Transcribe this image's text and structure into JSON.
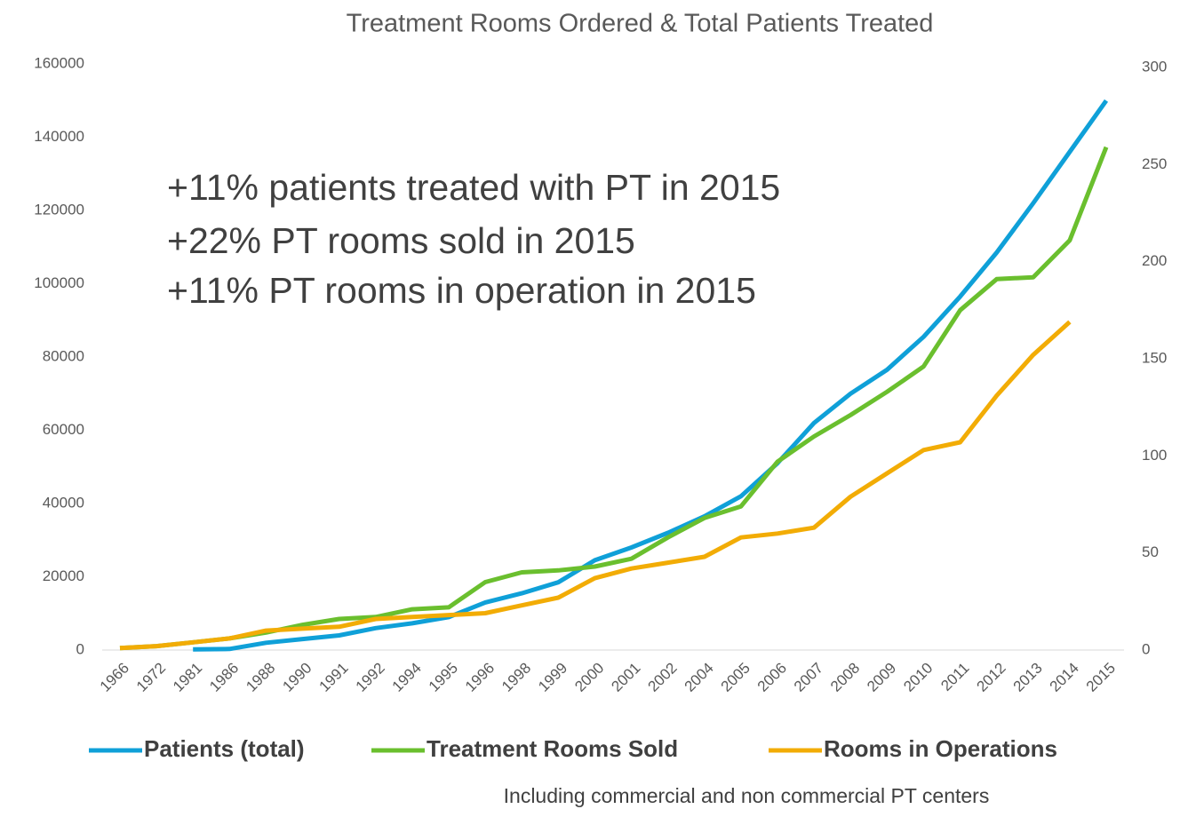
{
  "chart_data": {
    "type": "line",
    "title": "Treatment Rooms Ordered & Total Patients Treated",
    "annotations": [
      "+11% patients treated with PT in 2015",
      "+22% PT rooms sold in 2015",
      "+11% PT rooms in operation in 2015"
    ],
    "footnote": "Including commercial and non commercial PT centers",
    "categories": [
      "1966",
      "1972",
      "1981",
      "1986",
      "1988",
      "1990",
      "1991",
      "1992",
      "1994",
      "1995",
      "1996",
      "1998",
      "1999",
      "2000",
      "2001",
      "2002",
      "2004",
      "2005",
      "2006",
      "2007",
      "2008",
      "2009",
      "2010",
      "2011",
      "2012",
      "2013",
      "2014",
      "2015"
    ],
    "ylim": [
      0,
      160000
    ],
    "yticks": [
      0,
      20000,
      40000,
      60000,
      80000,
      100000,
      120000,
      140000,
      160000
    ],
    "y2lim": [
      0,
      300
    ],
    "y2ticks": [
      0,
      50,
      100,
      150,
      200,
      250,
      300
    ],
    "legend": "bottom",
    "series": [
      {
        "name": "Patients (total)",
        "color": "#0fa0d8",
        "values": [
          null,
          null,
          200,
          300,
          2000,
          3000,
          4000,
          6000,
          7300,
          9000,
          13000,
          15500,
          18500,
          24500,
          28000,
          32000,
          36500,
          42000,
          51000,
          62000,
          70000,
          76500,
          85500,
          96500,
          108500,
          122000,
          136000,
          150000
        ]
      },
      {
        "name": "Treatment Rooms Sold",
        "color": "#6abf2e",
        "axis": "y2",
        "values": [
          1,
          2,
          4,
          6,
          9,
          13,
          16,
          17,
          21,
          22,
          35,
          40,
          41,
          43,
          47,
          58,
          68,
          74,
          97,
          110,
          121,
          133,
          146,
          175,
          191,
          192,
          211,
          259
        ]
      },
      {
        "name": "Rooms in Operations",
        "color": "#f2ac05",
        "axis": "y2",
        "values": [
          1,
          2,
          4,
          6,
          10,
          11,
          12,
          16,
          17,
          18,
          19,
          23,
          27,
          37,
          42,
          45,
          48,
          58,
          60,
          63,
          79,
          91,
          103,
          107,
          131,
          152,
          169,
          null
        ]
      }
    ]
  }
}
